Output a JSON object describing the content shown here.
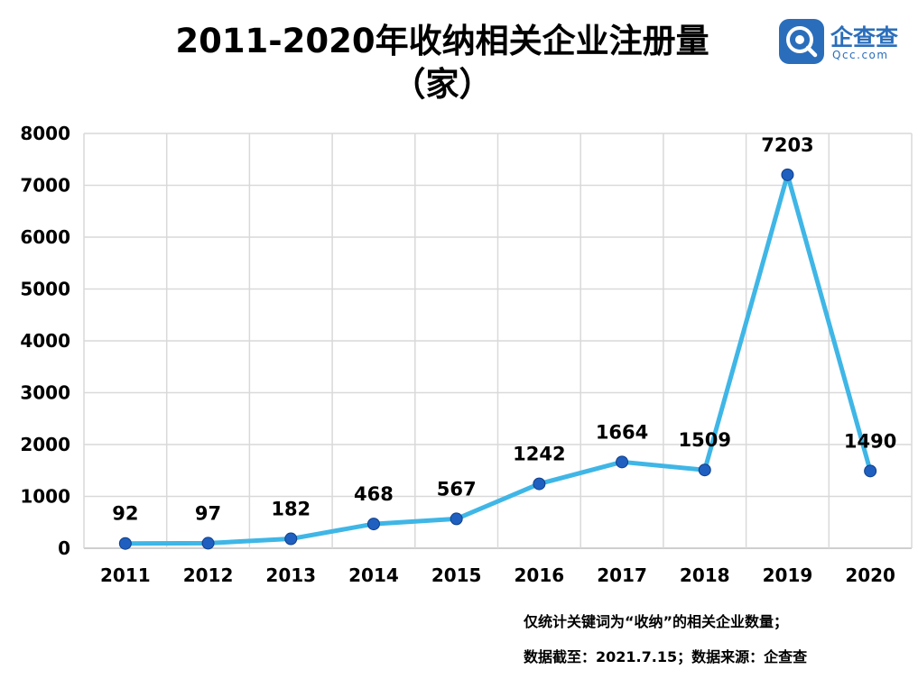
{
  "title_line1": "2011-2020年收纳相关企业注册量",
  "title_line2": "（家）",
  "logo": {
    "name": "企查查",
    "domain": "Qcc.com",
    "icon": "qcc-logo-icon",
    "color": "#2a6ebb"
  },
  "notes": [
    "仅统计关键词为“收纳”的相关企业数量；",
    "数据截至：2021.7.15；数据来源：企查查"
  ],
  "chart_data": {
    "type": "line",
    "title": "2011-2020年收纳相关企业注册量（家）",
    "xlabel": "",
    "ylabel": "",
    "categories": [
      "2011",
      "2012",
      "2013",
      "2014",
      "2015",
      "2016",
      "2017",
      "2018",
      "2019",
      "2020"
    ],
    "values": [
      92,
      97,
      182,
      468,
      567,
      1242,
      1664,
      1509,
      7203,
      1490
    ],
    "ylim": [
      0,
      8000
    ],
    "yticks": [
      0,
      1000,
      2000,
      3000,
      4000,
      5000,
      6000,
      7000,
      8000
    ],
    "grid": true,
    "line_color": "#3fb6e6",
    "marker_color": "#1f5fbf"
  }
}
